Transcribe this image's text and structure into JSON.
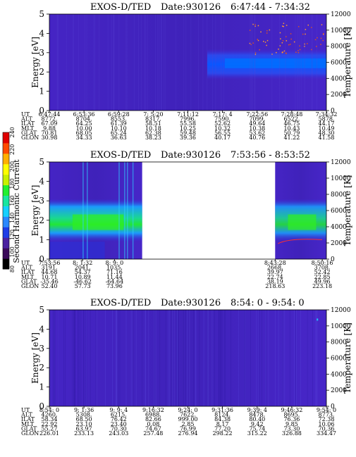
{
  "colorbar": {
    "label": "Second Harmonic Current",
    "ticks": [
      "80",
      "100",
      "120",
      "140",
      "160",
      "180",
      "200",
      "220",
      "240"
    ],
    "colors": [
      "#000000",
      "#3a0a5a",
      "#4a20a0",
      "#1e3ce6",
      "#2a88ff",
      "#16d0ff",
      "#18e6a0",
      "#20f030",
      "#c8f000",
      "#ffff00",
      "#ffb000",
      "#ff4a00",
      "#e00000"
    ]
  },
  "axis_labels": {
    "y_left": "Energy [eV]",
    "y_right": "Temperature [K]"
  },
  "row_labels": [
    "UT",
    "ALT",
    "ILAT",
    "MLT",
    "GLAT",
    "GLON"
  ],
  "chart_data": [
    {
      "type": "heatmap",
      "title": "EXOS-D/TED",
      "date": "Date:930126",
      "time_range": "6:47:44 - 7:34:32",
      "ylim": [
        0,
        5
      ],
      "y_ticks": [
        "0",
        "1",
        "2",
        "3",
        "4",
        "5"
      ],
      "y2lim": [
        0,
        12000
      ],
      "y2_ticks": [
        "0",
        "2000",
        "4000",
        "6000",
        "8000",
        "10000",
        "12000"
      ],
      "columns": [
        [
          "6:47:44",
          "8772.",
          "67.09",
          "9.88",
          "70.81",
          "30.98"
        ],
        [
          "6:53:36",
          "8704.",
          "64.25",
          "10.00",
          "68.05",
          "34.33"
        ],
        [
          "6:59:28",
          "8553.",
          "61.39",
          "10.10",
          "65.24",
          "36.63"
        ],
        [
          "7: 5:20",
          "8317.",
          "58.51",
          "10.18",
          "62.38",
          "38.23"
        ],
        [
          "7:11:12",
          "7996.",
          "55.58",
          "10.25",
          "59.48",
          "39.36"
        ],
        [
          "7:17: 4",
          "7590.",
          "52.62",
          "10.32",
          "56.55",
          "40.17"
        ],
        [
          "7:22:56",
          "7099.",
          "49.64",
          "10.38",
          "53.62",
          "40.76"
        ],
        [
          "7:28:48",
          "6522.",
          "46.75",
          "10.43",
          "50.79",
          "41.22"
        ],
        [
          "7:34:32",
          "5878.",
          "44.17",
          "10.49",
          "48.30",
          "41.58"
        ]
      ]
    },
    {
      "type": "heatmap",
      "title": "EXOS-D/TED",
      "date": "Date:930126",
      "time_range": "7:53:56 - 8:53:52",
      "ylim": [
        0,
        5
      ],
      "y_ticks": [
        "0",
        "1",
        "2",
        "3",
        "4",
        "5"
      ],
      "y2lim": [
        0,
        12000
      ],
      "y2_ticks": [
        "0",
        "2000",
        "4000",
        "6000",
        "8000",
        "10000",
        "12000"
      ],
      "columns": [
        [
          "7:53:56",
          "3191.",
          "44.68",
          "10.71",
          "-35.46",
          "52.40"
        ],
        [
          "8: 1:32",
          "2041.",
          "54.37",
          "10.89",
          "-46.62",
          "57.73"
        ],
        [
          "8: 9: 0",
          "1035.",
          "71.16",
          "11.44",
          "-64.64",
          "73.96"
        ],
        [
          "8:43:28",
          "2668.",
          "39.97",
          "22.74",
          "38.19",
          "218.63"
        ],
        [
          "8:50:16",
          "3708.",
          "52.42",
          "22.85",
          "49.96",
          "223.18"
        ]
      ]
    },
    {
      "type": "heatmap",
      "title": "EXOS-D/TED",
      "date": "Date:930126",
      "time_range": "8:54: 0 - 9:54: 0",
      "ylim": [
        0,
        5
      ],
      "y_ticks": [
        "0",
        "1",
        "2",
        "3",
        "4",
        "5"
      ],
      "y2lim": [
        0,
        12000
      ],
      "y2_ticks": [
        "0",
        "2000",
        "4000",
        "6000",
        "8000",
        "10000",
        "12000"
      ],
      "columns": [
        [
          "8:54: 0",
          "4260.",
          "58.34",
          "22.92",
          "55.27",
          "226.01"
        ],
        [
          "9: 1:36",
          "5308.",
          "68.50",
          "23.10",
          "63.97",
          "233.13"
        ],
        [
          "9: 9: 4",
          "6215.",
          "76.42",
          "23.40",
          "70.30",
          "243.03"
        ],
        [
          "9:16:32",
          "6988.",
          "82.66",
          "0.08",
          "74.67",
          "257.48"
        ],
        [
          "9:24: 0",
          "7622.",
          "999.00",
          "2.85",
          "76.99",
          "276.94"
        ],
        [
          "9:31:36",
          "8124.",
          "84.38",
          "8.17",
          "77.20",
          "298.22"
        ],
        [
          "9:39: 4",
          "8478.",
          "80.40",
          "9.42",
          "75.74",
          "315.22"
        ],
        [
          "9:46:32",
          "8695.",
          "76.36",
          "9.85",
          "73.30",
          "326.88"
        ],
        [
          "9:54: 0",
          "8773.",
          "72.38",
          "10.06",
          "70.36",
          "334.47"
        ]
      ]
    }
  ]
}
